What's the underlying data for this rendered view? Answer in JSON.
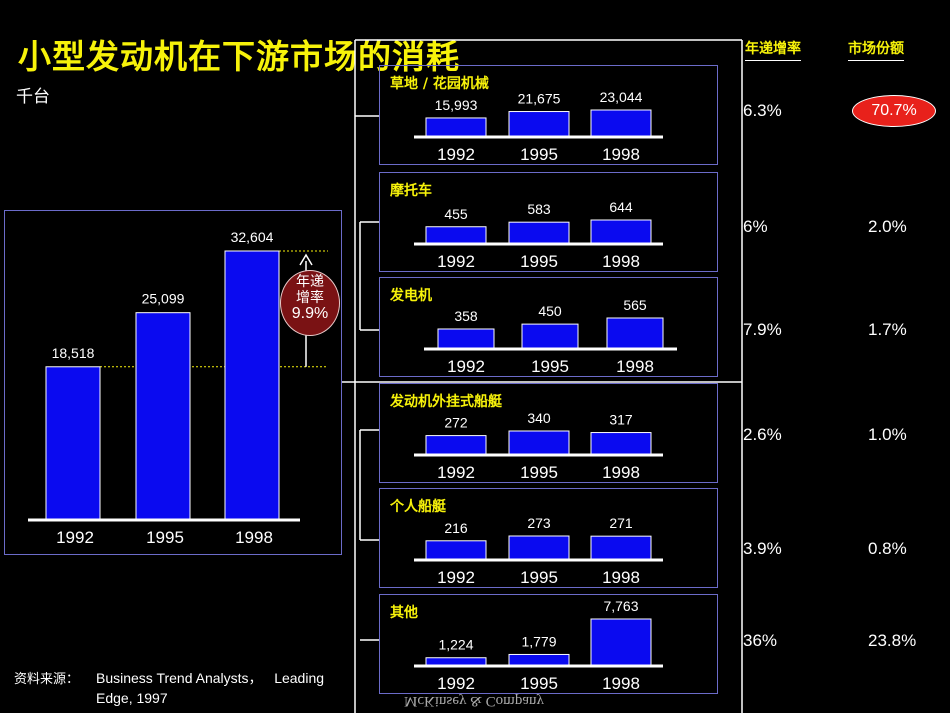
{
  "title": "小型发动机在下游市场的消耗",
  "unit": "千台",
  "headers": {
    "growth": "年递增率",
    "share": "市场份额"
  },
  "total_growth_label": "年递\n增率",
  "source_label": "资料来源：",
  "source_text_1": "Business Trend Analysts，   Leading",
  "source_text_2": "Edge, 1997",
  "logo": "McKinsey & Company",
  "colors": {
    "bar": "#0a0af0",
    "title": "#f7f20a",
    "badge": "#e8211b",
    "panel_border": "#6b6bc9"
  },
  "chart_data": [
    {
      "type": "bar",
      "title": "",
      "categories": [
        "1992",
        "1995",
        "1998"
      ],
      "values": [
        18518,
        25099,
        32604
      ],
      "labels": [
        "18,518",
        "25,099",
        "32,604"
      ],
      "growth": "9.9%"
    },
    {
      "type": "bar",
      "title": "草地 / 花园机械",
      "categories": [
        "1992",
        "1995",
        "1998"
      ],
      "values": [
        15993,
        21675,
        23044
      ],
      "labels": [
        "15,993",
        "21,675",
        "23,044"
      ],
      "growth": "6.3%",
      "share": "70.7%"
    },
    {
      "type": "bar",
      "title": "摩托车",
      "categories": [
        "1992",
        "1995",
        "1998"
      ],
      "values": [
        455,
        583,
        644
      ],
      "labels": [
        "455",
        "583",
        "644"
      ],
      "growth": "6%",
      "share": "2.0%"
    },
    {
      "type": "bar",
      "title": "发电机",
      "categories": [
        "1992",
        "1995",
        "1998"
      ],
      "values": [
        358,
        450,
        565
      ],
      "labels": [
        "358",
        "450",
        "565"
      ],
      "growth": "7.9%",
      "share": "1.7%"
    },
    {
      "type": "bar",
      "title": "发动机外挂式船艇",
      "categories": [
        "1992",
        "1995",
        "1998"
      ],
      "values": [
        272,
        340,
        317
      ],
      "labels": [
        "272",
        "340",
        "317"
      ],
      "growth": "2.6%",
      "share": "1.0%"
    },
    {
      "type": "bar",
      "title": "个人船艇",
      "categories": [
        "1992",
        "1995",
        "1998"
      ],
      "values": [
        216,
        273,
        271
      ],
      "labels": [
        "216",
        "273",
        "271"
      ],
      "growth": "3.9%",
      "share": "0.8%"
    },
    {
      "type": "bar",
      "title": "其他",
      "categories": [
        "1992",
        "1995",
        "1998"
      ],
      "values": [
        1224,
        1779,
        7763
      ],
      "labels": [
        "1,224",
        "1,779",
        "7,763"
      ],
      "growth": "36%",
      "share": "23.8%"
    }
  ]
}
